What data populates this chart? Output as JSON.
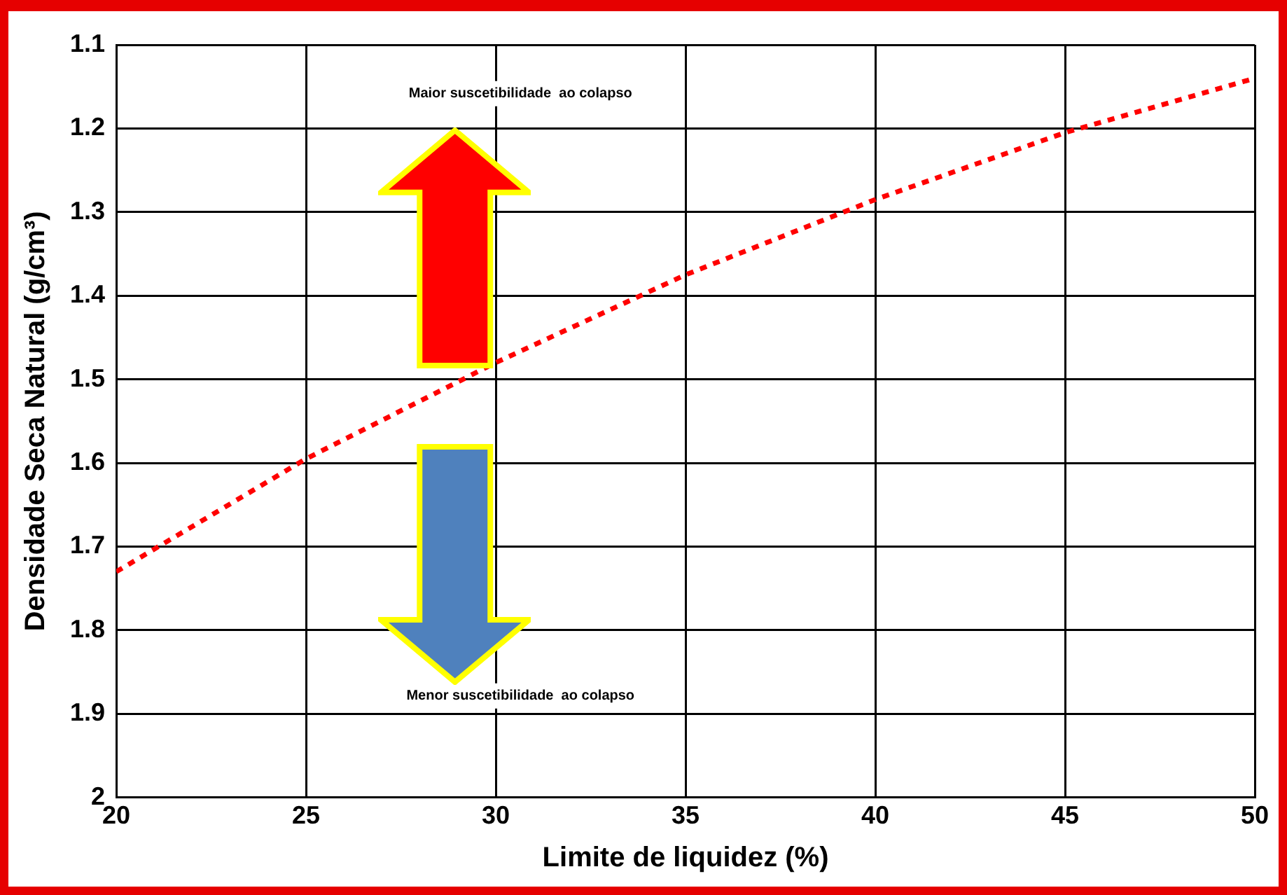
{
  "chart_data": {
    "type": "line",
    "xlabel": "Limite de liquidez (%)",
    "ylabel": "Densidade Seca Natural (g/cm³)",
    "annotations": [
      "Maior suscetibilidade  ao colapso",
      "Menor suscetibilidade  ao colapso"
    ],
    "x": [
      20,
      25,
      30,
      35,
      40,
      45,
      50
    ],
    "series": [
      {
        "color": "#ff0000",
        "values": [
          1.73,
          1.595,
          1.48,
          1.375,
          1.285,
          1.205,
          1.14
        ]
      }
    ],
    "xlim": [
      20,
      50
    ],
    "xticks": [
      20,
      25,
      30,
      35,
      40,
      45,
      50
    ],
    "ylim": [
      2,
      1.1
    ],
    "yticks": [
      1.1,
      1.2,
      1.3,
      1.4,
      1.5,
      1.6,
      1.7,
      1.8,
      1.9,
      2
    ],
    "grid": true,
    "legend": false,
    "marker": "none",
    "line_style": "dotted"
  }
}
